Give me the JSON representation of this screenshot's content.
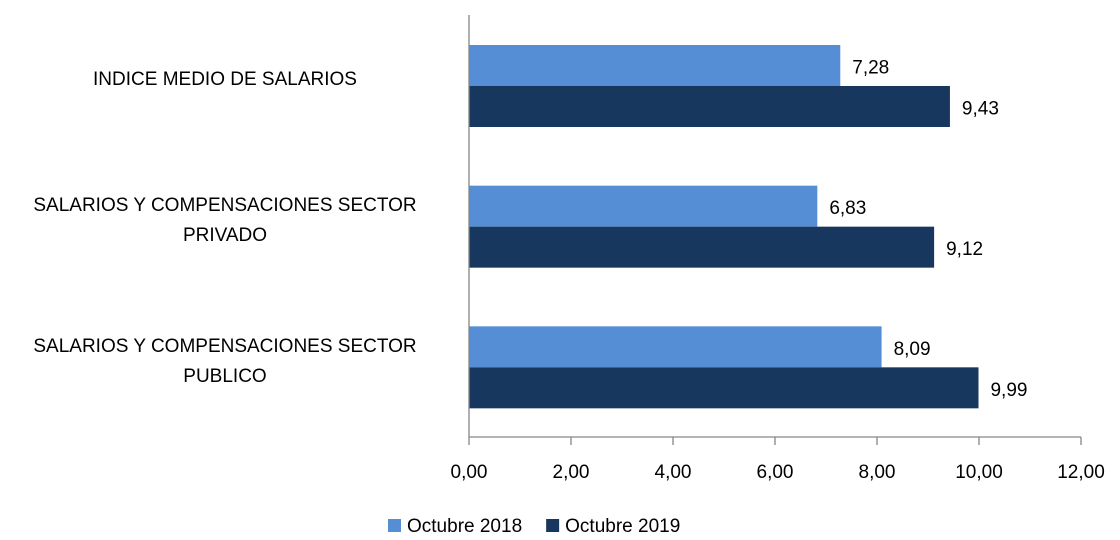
{
  "chart_data": {
    "type": "hbar",
    "categories": [
      "INDICE MEDIO DE SALARIOS",
      "SALARIOS Y COMPENSACIONES SECTOR PRIVADO",
      "SALARIOS Y COMPENSACIONES SECTOR PUBLICO"
    ],
    "series": [
      {
        "name": "Octubre 2018",
        "color": "#558ed5",
        "values": [
          7.28,
          6.83,
          8.09
        ],
        "value_labels": [
          "7,28",
          "6,83",
          "8,09"
        ]
      },
      {
        "name": "Octubre 2019",
        "color": "#17375e",
        "values": [
          9.43,
          9.12,
          9.99
        ],
        "value_labels": [
          "9,43",
          "9,12",
          "9,99"
        ]
      }
    ],
    "xlim": [
      0,
      12
    ],
    "xticks": [
      {
        "value": 0,
        "label": "0,00"
      },
      {
        "value": 2,
        "label": "2,00"
      },
      {
        "value": 4,
        "label": "4,00"
      },
      {
        "value": 6,
        "label": "6,00"
      },
      {
        "value": 8,
        "label": "8,00"
      },
      {
        "value": 10,
        "label": "10,00"
      },
      {
        "value": 12,
        "label": "12,00"
      }
    ],
    "legend": "bottom"
  }
}
